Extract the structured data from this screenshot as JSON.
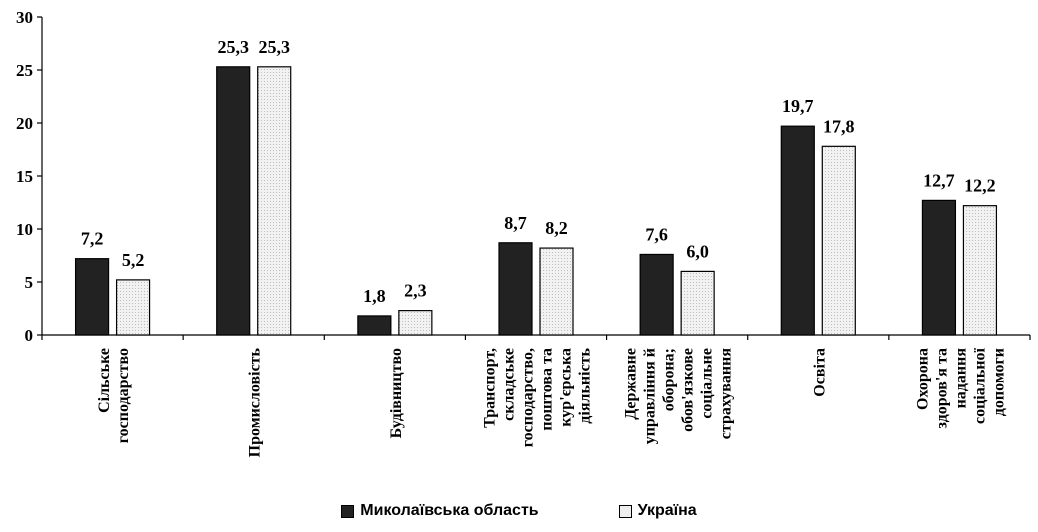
{
  "chart_data": {
    "type": "bar",
    "categories": [
      [
        "Сільське",
        "господарство"
      ],
      [
        "Промисловість"
      ],
      [
        "Будівництво"
      ],
      [
        "Транспорт,",
        "складське",
        "господарство,",
        "поштова та",
        "кур'єрська",
        "діяльність"
      ],
      [
        "Державне",
        "управління й",
        "оборона;",
        "обов'язкове",
        "соціальне",
        "страхування"
      ],
      [
        "Освіта"
      ],
      [
        "Охорона",
        "здоров'я та",
        "надання",
        "соціальної",
        "допомоги"
      ]
    ],
    "series": [
      {
        "name": "Миколаївська область",
        "values": [
          7.2,
          25.3,
          1.8,
          8.7,
          7.6,
          19.7,
          12.7
        ],
        "labels": [
          "7,2",
          "25,3",
          "1,8",
          "8,7",
          "7,6",
          "19,7",
          "12,7"
        ],
        "color": "#222222"
      },
      {
        "name": "Україна",
        "values": [
          5.2,
          25.3,
          2.3,
          8.2,
          6.0,
          17.8,
          12.2
        ],
        "labels": [
          "5,2",
          "25,3",
          "2,3",
          "8,2",
          "6,0",
          "17,8",
          "12,2"
        ],
        "color": "#eeeeee"
      }
    ],
    "yticks": [
      0,
      5,
      10,
      15,
      20,
      25,
      30
    ],
    "ylim": [
      0,
      30
    ],
    "grid": false,
    "legend": "bottom-center"
  }
}
